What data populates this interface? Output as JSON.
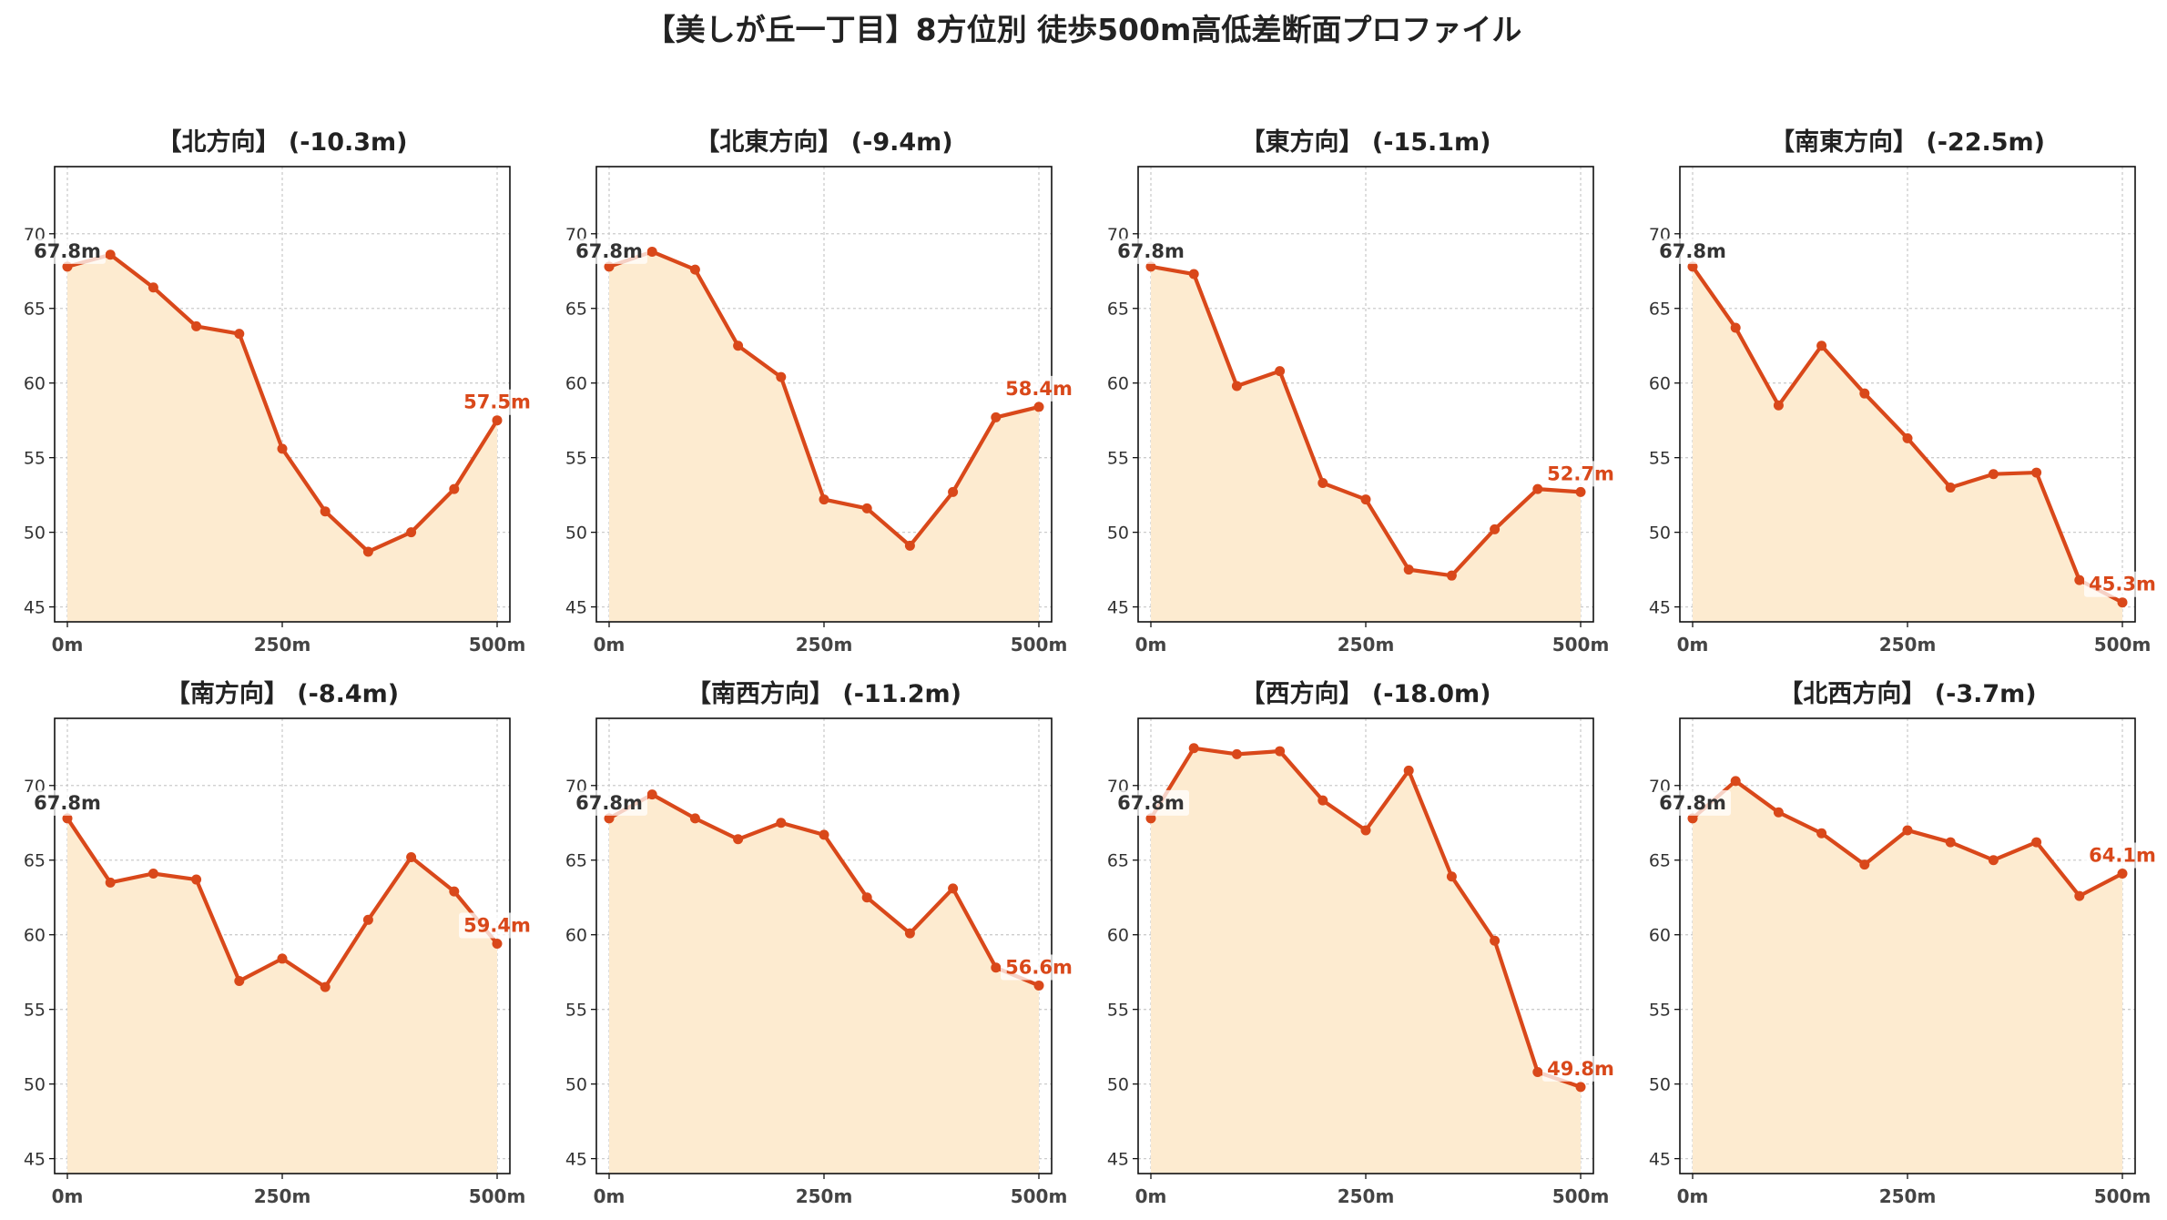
{
  "title": "【美しが丘一丁目】8方位別 徒歩500m高低差断面プロファイル",
  "colors": {
    "line": "#d9481a",
    "fill": "#fdebd0",
    "start_label": "#333333",
    "end_label": "#d9481a"
  },
  "chart_data": [
    {
      "type": "area",
      "title": "【北方向】 (-10.3m)",
      "x": [
        0,
        50,
        100,
        150,
        200,
        250,
        300,
        350,
        400,
        450,
        500
      ],
      "x_tick_labels": [
        "0m",
        "250m",
        "500m"
      ],
      "y_tick_labels": [
        "45",
        "50",
        "55",
        "60",
        "65",
        "70"
      ],
      "ylim": [
        44,
        74.5
      ],
      "grid": true,
      "values": [
        67.8,
        68.6,
        66.4,
        63.8,
        63.3,
        55.6,
        51.4,
        48.7,
        50.0,
        52.9,
        57.5
      ],
      "start_label": "67.8m",
      "end_label": "57.5m"
    },
    {
      "type": "area",
      "title": "【北東方向】 (-9.4m)",
      "x": [
        0,
        50,
        100,
        150,
        200,
        250,
        300,
        350,
        400,
        450,
        500
      ],
      "x_tick_labels": [
        "0m",
        "250m",
        "500m"
      ],
      "y_tick_labels": [
        "45",
        "50",
        "55",
        "60",
        "65",
        "70"
      ],
      "ylim": [
        44,
        74.5
      ],
      "grid": true,
      "values": [
        67.8,
        68.8,
        67.6,
        62.5,
        60.4,
        52.2,
        51.6,
        49.1,
        52.7,
        57.7,
        58.4
      ],
      "start_label": "67.8m",
      "end_label": "58.4m"
    },
    {
      "type": "area",
      "title": "【東方向】 (-15.1m)",
      "x": [
        0,
        50,
        100,
        150,
        200,
        250,
        300,
        350,
        400,
        450,
        500
      ],
      "x_tick_labels": [
        "0m",
        "250m",
        "500m"
      ],
      "y_tick_labels": [
        "45",
        "50",
        "55",
        "60",
        "65",
        "70"
      ],
      "ylim": [
        44,
        74.5
      ],
      "grid": true,
      "values": [
        67.8,
        67.3,
        59.8,
        60.8,
        53.3,
        52.2,
        47.5,
        47.1,
        50.2,
        52.9,
        52.7
      ],
      "start_label": "67.8m",
      "end_label": "52.7m"
    },
    {
      "type": "area",
      "title": "【南東方向】 (-22.5m)",
      "x": [
        0,
        50,
        100,
        150,
        200,
        250,
        300,
        350,
        400,
        450,
        500
      ],
      "x_tick_labels": [
        "0m",
        "250m",
        "500m"
      ],
      "y_tick_labels": [
        "45",
        "50",
        "55",
        "60",
        "65",
        "70"
      ],
      "ylim": [
        44,
        74.5
      ],
      "grid": true,
      "values": [
        67.8,
        63.7,
        58.5,
        62.5,
        59.3,
        56.3,
        53.0,
        53.9,
        54.0,
        46.8,
        45.3
      ],
      "start_label": "67.8m",
      "end_label": "45.3m"
    },
    {
      "type": "area",
      "title": "【南方向】 (-8.4m)",
      "x": [
        0,
        50,
        100,
        150,
        200,
        250,
        300,
        350,
        400,
        450,
        500
      ],
      "x_tick_labels": [
        "0m",
        "250m",
        "500m"
      ],
      "y_tick_labels": [
        "45",
        "50",
        "55",
        "60",
        "65",
        "70"
      ],
      "ylim": [
        44,
        74.5
      ],
      "grid": true,
      "values": [
        67.8,
        63.5,
        64.1,
        63.7,
        56.9,
        58.4,
        56.5,
        61.0,
        65.2,
        62.9,
        59.4
      ],
      "start_label": "67.8m",
      "end_label": "59.4m"
    },
    {
      "type": "area",
      "title": "【南西方向】 (-11.2m)",
      "x": [
        0,
        50,
        100,
        150,
        200,
        250,
        300,
        350,
        400,
        450,
        500
      ],
      "x_tick_labels": [
        "0m",
        "250m",
        "500m"
      ],
      "y_tick_labels": [
        "45",
        "50",
        "55",
        "60",
        "65",
        "70"
      ],
      "ylim": [
        44,
        74.5
      ],
      "grid": true,
      "values": [
        67.8,
        69.4,
        67.8,
        66.4,
        67.5,
        66.7,
        62.5,
        60.1,
        63.1,
        57.8,
        56.6
      ],
      "start_label": "67.8m",
      "end_label": "56.6m"
    },
    {
      "type": "area",
      "title": "【西方向】 (-18.0m)",
      "x": [
        0,
        50,
        100,
        150,
        200,
        250,
        300,
        350,
        400,
        450,
        500
      ],
      "x_tick_labels": [
        "0m",
        "250m",
        "500m"
      ],
      "y_tick_labels": [
        "45",
        "50",
        "55",
        "60",
        "65",
        "70"
      ],
      "ylim": [
        44,
        74.5
      ],
      "grid": true,
      "values": [
        67.8,
        72.5,
        72.1,
        72.3,
        69.0,
        67.0,
        71.0,
        63.9,
        59.6,
        50.8,
        49.8
      ],
      "start_label": "67.8m",
      "end_label": "49.8m"
    },
    {
      "type": "area",
      "title": "【北西方向】 (-3.7m)",
      "x": [
        0,
        50,
        100,
        150,
        200,
        250,
        300,
        350,
        400,
        450,
        500
      ],
      "x_tick_labels": [
        "0m",
        "250m",
        "500m"
      ],
      "y_tick_labels": [
        "45",
        "50",
        "55",
        "60",
        "65",
        "70"
      ],
      "ylim": [
        44,
        74.5
      ],
      "grid": true,
      "values": [
        67.8,
        70.3,
        68.2,
        66.8,
        64.7,
        67.0,
        66.2,
        65.0,
        66.2,
        62.6,
        64.1
      ],
      "start_label": "67.8m",
      "end_label": "64.1m"
    }
  ]
}
